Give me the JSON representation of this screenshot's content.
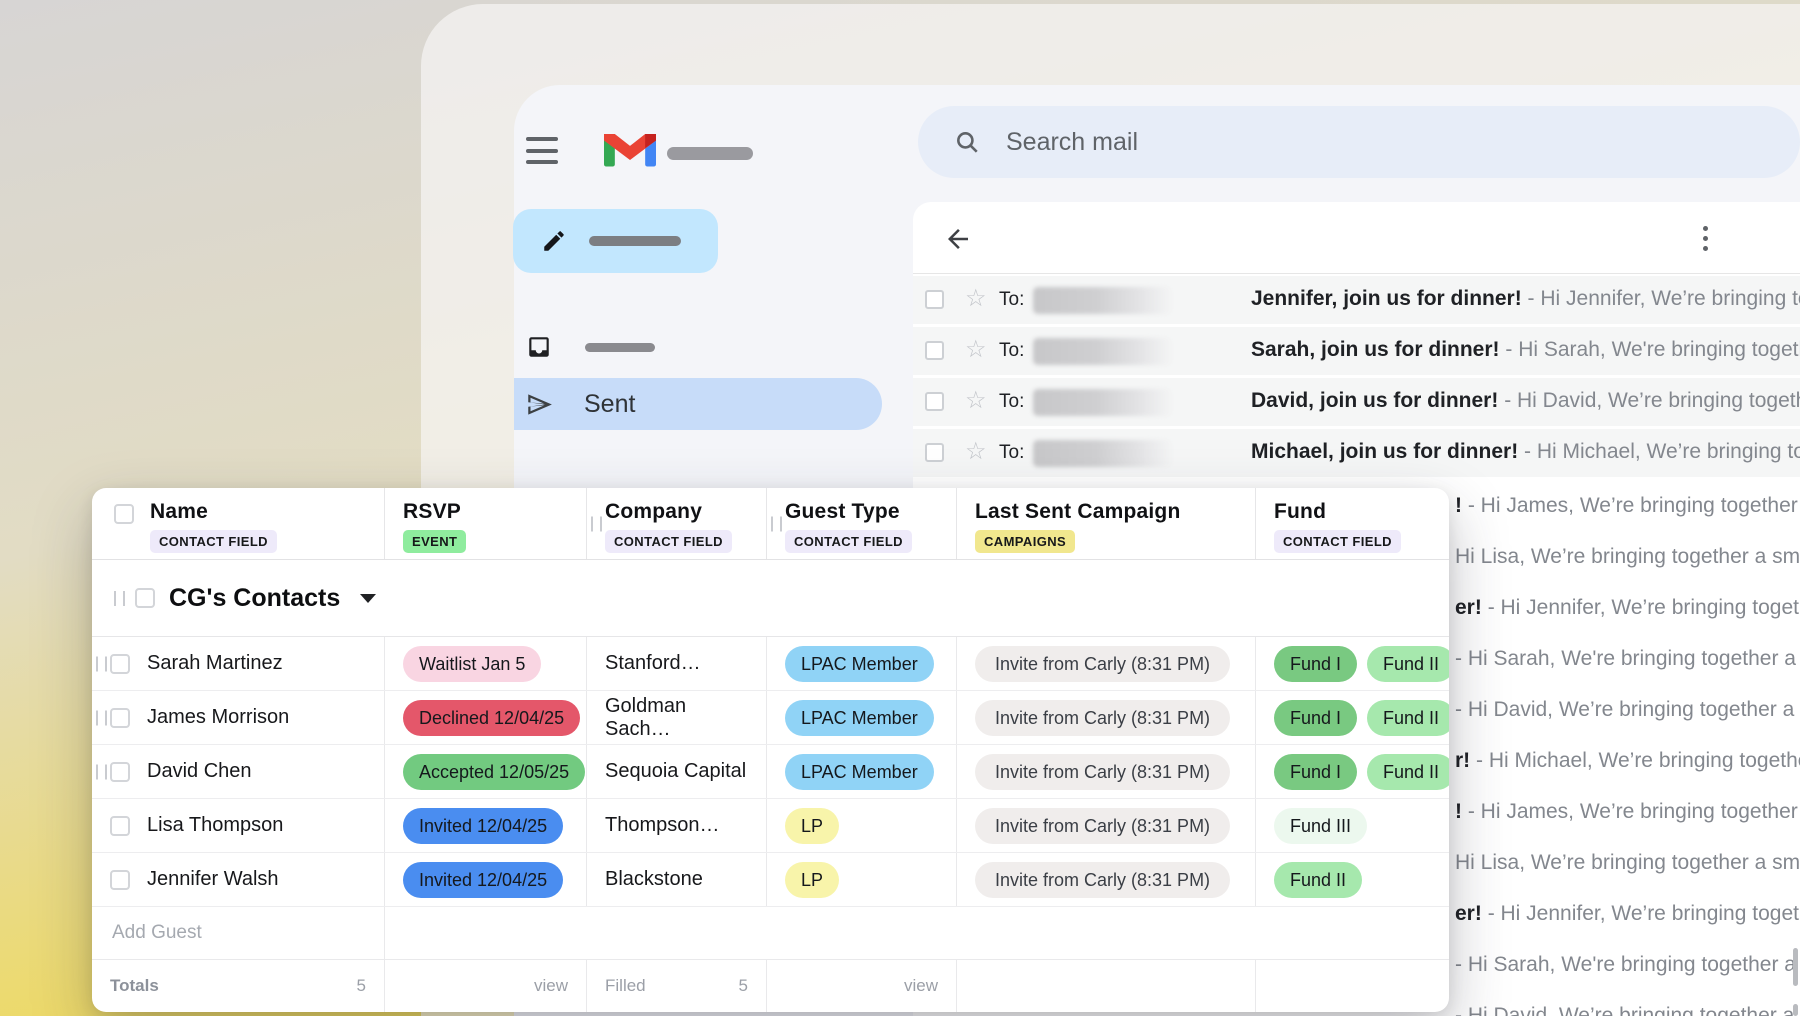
{
  "gmail": {
    "to_label": "To:",
    "search_placeholder": "Search mail",
    "sent_label": "Sent",
    "emails": [
      {
        "subject": "Jennifer, join us for dinner!",
        "preview": " - Hi Jennifer, We’re bringing together a s"
      },
      {
        "subject": "Sarah, join us for dinner!",
        "preview": " - Hi Sarah, We're bringing together a small"
      },
      {
        "subject": "David, join us for dinner!",
        "preview": " - Hi David, We’re bringing together a small g"
      },
      {
        "subject": "Michael, join us for dinner!",
        "preview": " - Hi Michael, We’re bringing together a sm"
      }
    ],
    "email_fragments": [
      {
        "bold": "!",
        "text": " - Hi James, We’re bringing together a sma"
      },
      {
        "bold": "",
        "text": "Hi Lisa, We’re bringing together a small gro"
      },
      {
        "bold": "er!",
        "text": " - Hi Jennifer, We’re bringing together a s"
      },
      {
        "bold": "",
        "text": "- Hi Sarah, We're bringing together a small"
      },
      {
        "bold": "",
        "text": "- Hi David, We’re bringing together a small g"
      },
      {
        "bold": "r!",
        "text": " - Hi Michael, We’re bringing together a s"
      },
      {
        "bold": "!",
        "text": " - Hi James, We’re bringing together a sma"
      },
      {
        "bold": "",
        "text": "Hi Lisa, We’re bringing together a small gro"
      },
      {
        "bold": "er!",
        "text": " - Hi Jennifer, We’re bringing together a s"
      },
      {
        "bold": "",
        "text": "- Hi Sarah, We're bringing together a small"
      },
      {
        "bold": "",
        "text": "- Hi David, We’re bringing together a small"
      }
    ]
  },
  "table": {
    "columns": [
      {
        "label": "Name",
        "badge": "CONTACT FIELD",
        "badge_color": "#eeeafa",
        "handle": false,
        "checkbox": true
      },
      {
        "label": "RSVP",
        "badge": "EVENT",
        "badge_color": "#8fec9e",
        "handle": false,
        "checkbox": false
      },
      {
        "label": "Company",
        "badge": "CONTACT FIELD",
        "badge_color": "#eeeafa",
        "handle": true,
        "checkbox": false
      },
      {
        "label": "Guest Type",
        "badge": "CONTACT FIELD",
        "badge_color": "#eeeafa",
        "handle": true,
        "checkbox": false
      },
      {
        "label": "Last Sent Campaign",
        "badge": "CAMPAIGNS",
        "badge_color": "#f1e78e",
        "handle": false,
        "checkbox": false
      },
      {
        "label": "Fund",
        "badge": "CONTACT FIELD",
        "badge_color": "#eeeafa",
        "handle": false,
        "checkbox": false
      }
    ],
    "group_title": "CG's Contacts",
    "rows": [
      {
        "handle": true,
        "name": "Sarah Martinez",
        "rsvp": {
          "label": "Waitlist Jan 5",
          "color": "#f9d5e2"
        },
        "company": "Stanford…",
        "guest_type": {
          "label": "LPAC Member",
          "color": "#90d3f6"
        },
        "campaign": "Invite from Carly (8:31 PM)",
        "funds": [
          {
            "label": "Fund I",
            "color": "#79c981"
          },
          {
            "label": "Fund II",
            "color": "#a6e8ad"
          }
        ]
      },
      {
        "handle": true,
        "name": "James Morrison",
        "rsvp": {
          "label": "Declined 12/04/25",
          "color": "#e4576a"
        },
        "company": "Goldman Sach…",
        "guest_type": {
          "label": "LPAC Member",
          "color": "#90d3f6"
        },
        "campaign": "Invite from Carly (8:31 PM)",
        "funds": [
          {
            "label": "Fund I",
            "color": "#79c981"
          },
          {
            "label": "Fund II",
            "color": "#a6e8ad"
          }
        ]
      },
      {
        "handle": true,
        "name": "David Chen",
        "rsvp": {
          "label": "Accepted 12/05/25",
          "color": "#72ca80"
        },
        "company": "Sequoia Capital",
        "guest_type": {
          "label": "LPAC Member",
          "color": "#90d3f6"
        },
        "campaign": "Invite from Carly (8:31 PM)",
        "funds": [
          {
            "label": "Fund I",
            "color": "#79c981"
          },
          {
            "label": "Fund II",
            "color": "#a6e8ad"
          }
        ]
      },
      {
        "handle": false,
        "name": "Lisa Thompson",
        "rsvp": {
          "label": "Invited 12/04/25",
          "color": "#4a8df0"
        },
        "company": "Thompson…",
        "guest_type": {
          "label": "LP",
          "color": "#f8f4aa"
        },
        "campaign": "Invite from Carly (8:31 PM)",
        "funds": [
          {
            "label": "Fund III",
            "color": "#ecf8ee"
          }
        ]
      },
      {
        "handle": false,
        "name": "Jennifer Walsh",
        "rsvp": {
          "label": "Invited 12/04/25",
          "color": "#4a8df0"
        },
        "company": "Blackstone",
        "guest_type": {
          "label": "LP",
          "color": "#f8f4aa"
        },
        "campaign": "Invite from Carly (8:31 PM)",
        "funds": [
          {
            "label": "Fund II",
            "color": "#a6e8ad"
          }
        ]
      }
    ],
    "add_guest_label": "Add Guest",
    "footer": {
      "totals_label": "Totals",
      "totals_value": "5",
      "rsvp_view_label": "view",
      "filled_label": "Filled",
      "filled_value": "5",
      "guest_view_label": "view"
    }
  }
}
